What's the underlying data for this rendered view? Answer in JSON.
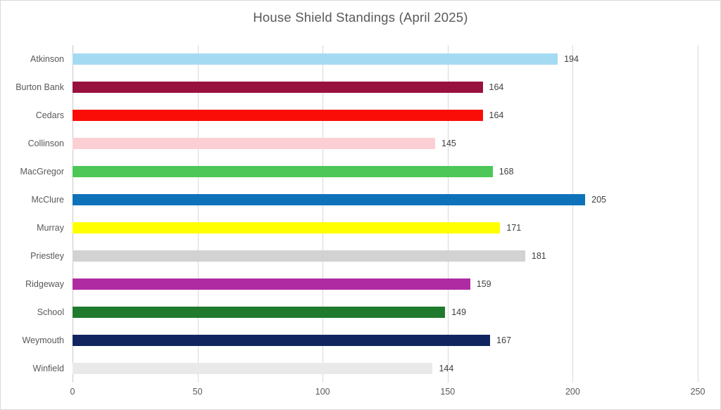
{
  "chart_data": {
    "type": "bar",
    "orientation": "horizontal",
    "title": "House Shield Standings (April 2025)",
    "categories": [
      "Atkinson",
      "Burton Bank",
      "Cedars",
      "Collinson",
      "MacGregor",
      "McClure",
      "Murray",
      "Priestley",
      "Ridgeway",
      "School",
      "Weymouth",
      "Winfield"
    ],
    "values": [
      194,
      164,
      164,
      145,
      168,
      205,
      171,
      181,
      159,
      149,
      167,
      144
    ],
    "bar_colors": [
      "#A4DAF2",
      "#98103D",
      "#FB0D07",
      "#FBCFD4",
      "#4DC757",
      "#0E72BA",
      "#FFFF00",
      "#D2D2D2",
      "#AF2BA1",
      "#1F7A2D",
      "#112460",
      "#E9E9E9"
    ],
    "xlabel": "",
    "ylabel": "",
    "xlim": [
      0,
      250
    ],
    "x_ticks": [
      0,
      50,
      100,
      150,
      200,
      250
    ],
    "value_labels_shown": true,
    "legend": "none",
    "grid": "vertical"
  },
  "style": {
    "title_color": "#595959",
    "category_label_color": "#595959",
    "value_label_color": "#404040",
    "gridline_color": "#D9D9D9",
    "frame_border_color": "#D9D9D9",
    "background": "#FFFFFF"
  }
}
